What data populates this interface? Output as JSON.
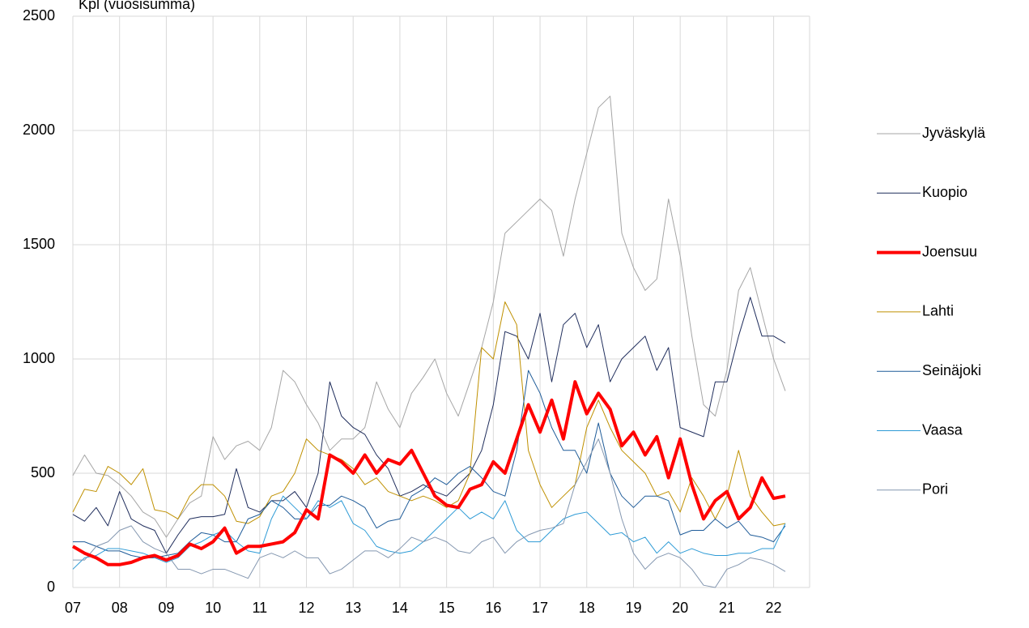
{
  "chart_data": {
    "type": "line",
    "title": "Kpl (vuosisumma)",
    "x": [
      2007,
      2007.25,
      2007.5,
      2007.75,
      2008,
      2008.25,
      2008.5,
      2008.75,
      2009,
      2009.25,
      2009.5,
      2009.75,
      2010,
      2010.25,
      2010.5,
      2010.75,
      2011,
      2011.25,
      2011.5,
      2011.75,
      2012,
      2012.25,
      2012.5,
      2012.75,
      2013,
      2013.25,
      2013.5,
      2013.75,
      2014,
      2014.25,
      2014.5,
      2014.75,
      2015,
      2015.25,
      2015.5,
      2015.75,
      2016,
      2016.25,
      2016.5,
      2016.75,
      2017,
      2017.25,
      2017.5,
      2017.75,
      2018,
      2018.25,
      2018.5,
      2018.75,
      2019,
      2019.25,
      2019.5,
      2019.75,
      2020,
      2020.25,
      2020.5,
      2020.75,
      2021,
      2021.25,
      2021.5,
      2021.75,
      2022,
      2022.25
    ],
    "xlim": [
      2007,
      2022.77
    ],
    "xticks": [
      {
        "value": 2007,
        "label": "07"
      },
      {
        "value": 2008,
        "label": "08"
      },
      {
        "value": 2009,
        "label": "09"
      },
      {
        "value": 2010,
        "label": "10"
      },
      {
        "value": 2011,
        "label": "11"
      },
      {
        "value": 2012,
        "label": "12"
      },
      {
        "value": 2013,
        "label": "13"
      },
      {
        "value": 2014,
        "label": "14"
      },
      {
        "value": 2015,
        "label": "15"
      },
      {
        "value": 2016,
        "label": "16"
      },
      {
        "value": 2017,
        "label": "17"
      },
      {
        "value": 2018,
        "label": "18"
      },
      {
        "value": 2019,
        "label": "19"
      },
      {
        "value": 2020,
        "label": "20"
      },
      {
        "value": 2021,
        "label": "21"
      },
      {
        "value": 2022,
        "label": "22"
      }
    ],
    "ylim": [
      0,
      2500
    ],
    "yticks": [
      0,
      500,
      1000,
      1500,
      2000,
      2500
    ],
    "grid": true,
    "legend": "right",
    "series": [
      {
        "name": "Jyväskylä",
        "color": "#a5a5a5",
        "width": 1,
        "values": [
          490,
          580,
          500,
          490,
          450,
          400,
          330,
          300,
          220,
          300,
          370,
          400,
          660,
          560,
          620,
          640,
          600,
          700,
          950,
          900,
          800,
          720,
          600,
          650,
          650,
          700,
          900,
          780,
          700,
          850,
          920,
          1000,
          850,
          750,
          900,
          1050,
          1250,
          1550,
          1600,
          1650,
          1700,
          1650,
          1450,
          1700,
          1900,
          2100,
          2150,
          1550,
          1400,
          1300,
          1350,
          1700,
          1450,
          1100,
          800,
          750,
          950,
          1300,
          1400,
          1200,
          1000,
          860
        ]
      },
      {
        "name": "Kuopio",
        "color": "#1f2d5c",
        "width": 1,
        "values": [
          320,
          290,
          350,
          270,
          420,
          300,
          270,
          250,
          150,
          230,
          300,
          310,
          310,
          320,
          520,
          350,
          330,
          380,
          380,
          420,
          350,
          500,
          900,
          750,
          700,
          670,
          580,
          520,
          400,
          420,
          450,
          420,
          400,
          450,
          500,
          600,
          800,
          1120,
          1100,
          1000,
          1200,
          900,
          1150,
          1200,
          1050,
          1150,
          900,
          1000,
          1050,
          1100,
          950,
          1050,
          700,
          680,
          660,
          900,
          900,
          1100,
          1270,
          1100,
          1100,
          1070
        ]
      },
      {
        "name": "Joensuu",
        "color": "#ff0000",
        "width": 4,
        "values": [
          180,
          150,
          130,
          100,
          100,
          110,
          130,
          140,
          120,
          140,
          190,
          170,
          200,
          260,
          150,
          180,
          180,
          190,
          200,
          240,
          340,
          300,
          580,
          550,
          500,
          580,
          500,
          560,
          540,
          600,
          500,
          400,
          360,
          350,
          430,
          450,
          550,
          500,
          650,
          800,
          680,
          820,
          650,
          900,
          760,
          850,
          780,
          620,
          680,
          580,
          660,
          480,
          650,
          450,
          300,
          380,
          420,
          300,
          350,
          480,
          390,
          400
        ]
      },
      {
        "name": "Lahti",
        "color": "#bf9000",
        "width": 1,
        "values": [
          330,
          430,
          420,
          530,
          500,
          450,
          520,
          340,
          330,
          300,
          400,
          450,
          450,
          400,
          290,
          280,
          310,
          400,
          420,
          500,
          650,
          600,
          580,
          560,
          520,
          450,
          480,
          420,
          400,
          380,
          400,
          380,
          350,
          380,
          500,
          1050,
          1000,
          1250,
          1150,
          600,
          450,
          350,
          400,
          450,
          700,
          820,
          700,
          600,
          550,
          500,
          400,
          420,
          330,
          480,
          400,
          300,
          400,
          600,
          400,
          330,
          270,
          280
        ]
      },
      {
        "name": "Seinäjoki",
        "color": "#1f5c99",
        "width": 1,
        "values": [
          200,
          200,
          180,
          160,
          160,
          140,
          130,
          130,
          140,
          150,
          200,
          240,
          230,
          200,
          200,
          300,
          320,
          380,
          350,
          300,
          300,
          360,
          360,
          400,
          380,
          350,
          260,
          290,
          300,
          400,
          430,
          480,
          450,
          500,
          530,
          480,
          420,
          400,
          600,
          950,
          850,
          700,
          600,
          600,
          500,
          720,
          500,
          400,
          350,
          400,
          400,
          380,
          230,
          250,
          250,
          300,
          260,
          290,
          230,
          220,
          200,
          270
        ]
      },
      {
        "name": "Vaasa",
        "color": "#2e9bd6",
        "width": 1,
        "values": [
          80,
          130,
          140,
          170,
          170,
          160,
          150,
          130,
          110,
          130,
          180,
          200,
          230,
          250,
          200,
          160,
          150,
          300,
          400,
          350,
          300,
          380,
          350,
          380,
          280,
          250,
          180,
          160,
          150,
          160,
          200,
          250,
          300,
          350,
          300,
          330,
          300,
          380,
          250,
          200,
          200,
          250,
          300,
          320,
          330,
          280,
          230,
          240,
          200,
          220,
          150,
          200,
          150,
          170,
          150,
          140,
          140,
          150,
          150,
          170,
          170,
          280
        ]
      },
      {
        "name": "Pori",
        "color": "#8497b0",
        "width": 1,
        "values": [
          120,
          120,
          180,
          200,
          250,
          270,
          200,
          170,
          150,
          80,
          80,
          60,
          80,
          80,
          60,
          40,
          130,
          150,
          130,
          160,
          130,
          130,
          60,
          80,
          120,
          160,
          160,
          130,
          170,
          220,
          200,
          220,
          200,
          160,
          150,
          200,
          220,
          150,
          200,
          230,
          250,
          260,
          280,
          450,
          550,
          650,
          500,
          300,
          150,
          80,
          130,
          150,
          130,
          80,
          10,
          0,
          80,
          100,
          130,
          120,
          100,
          70
        ]
      }
    ]
  }
}
